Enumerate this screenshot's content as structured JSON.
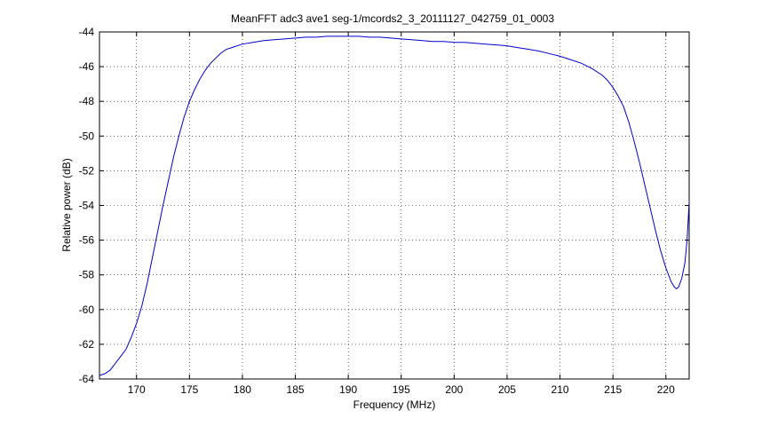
{
  "chart_data": {
    "type": "line",
    "title": "MeanFFT adc3 ave1 seg-1/mcords2_3_20111127_042759_01_0003",
    "xlabel": "Frequency (MHz)",
    "ylabel": "Relative power (dB)",
    "xlim": [
      166.5,
      222.2
    ],
    "ylim": [
      -64,
      -44
    ],
    "xticks": [
      170,
      175,
      180,
      185,
      190,
      195,
      200,
      205,
      210,
      215,
      220
    ],
    "yticks": [
      -64,
      -62,
      -60,
      -58,
      -56,
      -54,
      -52,
      -50,
      -48,
      -46,
      -44
    ],
    "grid": true,
    "line_color": "#0000cc",
    "series": [
      {
        "x": [
          166.5,
          167.0,
          167.5,
          168.0,
          168.5,
          169.0,
          169.5,
          170.0,
          170.5,
          171.0,
          171.5,
          172.0,
          172.5,
          173.0,
          173.5,
          174.0,
          174.5,
          175.0,
          175.5,
          176.0,
          176.5,
          177.0,
          177.5,
          178.0,
          178.5,
          179.0,
          180.0,
          181.0,
          182.0,
          183.0,
          184.0,
          185.0,
          186.0,
          187.0,
          188.0,
          189.0,
          190.0,
          191.0,
          192.0,
          193.0,
          194.0,
          195.0,
          196.0,
          197.0,
          198.0,
          199.0,
          200.0,
          201.0,
          202.0,
          203.0,
          204.0,
          205.0,
          206.0,
          207.0,
          208.0,
          209.0,
          210.0,
          211.0,
          212.0,
          213.0,
          214.0,
          214.5,
          215.0,
          215.5,
          216.0,
          216.5,
          217.0,
          217.5,
          218.0,
          218.5,
          219.0,
          219.5,
          220.0,
          220.5,
          220.8,
          221.0,
          221.2,
          221.5,
          221.8,
          222.0,
          222.2
        ],
        "y": [
          -63.8,
          -63.7,
          -63.5,
          -63.1,
          -62.7,
          -62.3,
          -61.6,
          -60.8,
          -59.8,
          -58.5,
          -57.0,
          -55.5,
          -54.0,
          -52.6,
          -51.2,
          -50.0,
          -48.9,
          -48.0,
          -47.3,
          -46.7,
          -46.2,
          -45.8,
          -45.5,
          -45.2,
          -45.0,
          -44.9,
          -44.7,
          -44.6,
          -44.5,
          -44.45,
          -44.4,
          -44.35,
          -44.3,
          -44.3,
          -44.25,
          -44.25,
          -44.25,
          -44.25,
          -44.3,
          -44.3,
          -44.35,
          -44.4,
          -44.45,
          -44.5,
          -44.55,
          -44.55,
          -44.6,
          -44.6,
          -44.65,
          -44.7,
          -44.75,
          -44.8,
          -44.9,
          -45.0,
          -45.1,
          -45.25,
          -45.4,
          -45.6,
          -45.8,
          -46.1,
          -46.5,
          -46.8,
          -47.2,
          -47.7,
          -48.3,
          -49.2,
          -50.3,
          -51.5,
          -52.8,
          -54.1,
          -55.4,
          -56.6,
          -57.6,
          -58.4,
          -58.7,
          -58.8,
          -58.7,
          -58.2,
          -57.3,
          -56.0,
          -53.8
        ]
      }
    ]
  }
}
